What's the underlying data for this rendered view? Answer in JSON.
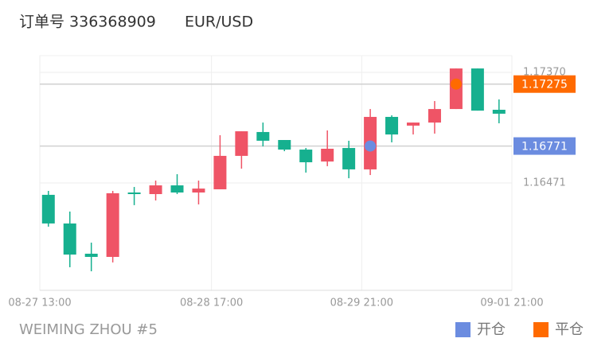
{
  "header": {
    "order": "订单号 336368909",
    "symbol": "EUR/USD"
  },
  "footer": {
    "author": "WEIMING ZHOU #5"
  },
  "chart_data": {
    "type": "candlestick",
    "x": [
      0.4,
      1.4,
      2.4,
      3.4,
      4.4,
      5.4,
      6.4,
      7.4,
      8.4,
      9.4,
      10.4,
      11.4,
      12.4,
      13.4,
      14.4,
      15.4,
      16.4,
      17.4,
      18.4,
      19.4,
      20.4,
      21.4
    ],
    "open": [
      1.16374,
      1.16141,
      1.15895,
      1.15869,
      1.16393,
      1.1638,
      1.16451,
      1.16393,
      1.16419,
      1.16691,
      1.16885,
      1.1682,
      1.16742,
      1.16645,
      1.16755,
      1.16581,
      1.17008,
      1.16937,
      1.16962,
      1.17072,
      1.17402,
      1.17066
    ],
    "high": [
      1.16406,
      1.16238,
      1.15985,
      1.16406,
      1.16438,
      1.1649,
      1.16542,
      1.1649,
      1.16859,
      1.16891,
      1.16962,
      1.1682,
      1.16755,
      1.16898,
      1.16814,
      1.17072,
      1.17021,
      1.16962,
      1.17137,
      1.17402,
      1.17402,
      1.1715
    ],
    "low": [
      1.16115,
      1.15785,
      1.15752,
      1.15824,
      1.1629,
      1.16328,
      1.1638,
      1.16296,
      1.16419,
      1.16587,
      1.16768,
      1.16729,
      1.16555,
      1.16607,
      1.16509,
      1.16535,
      1.16801,
      1.16865,
      1.16872,
      1.17072,
      1.17059,
      1.16956
    ],
    "close": [
      1.16141,
      1.15888,
      1.15869,
      1.16387,
      1.1638,
      1.16451,
      1.16393,
      1.16425,
      1.16691,
      1.16891,
      1.16814,
      1.16742,
      1.16639,
      1.16749,
      1.16581,
      1.17008,
      1.16865,
      1.16962,
      1.17072,
      1.17402,
      1.17059,
      1.17034
    ],
    "up_color": "#ef5466",
    "down_color": "#16b08f",
    "xlim": [
      0,
      22
    ],
    "xticks": [
      {
        "value": 0,
        "label": "08-27 13:00"
      },
      {
        "value": 8,
        "label": "08-28 17:00"
      },
      {
        "value": 15,
        "label": "08-29 21:00"
      },
      {
        "value": 22,
        "label": "09-01 21:00"
      }
    ],
    "ylim": [
      1.15597,
      1.17506
    ],
    "yticks": [
      {
        "value": 1.1737,
        "label": "1.17370"
      },
      1.16471
    ],
    "grid": true,
    "legend": "bottom-right",
    "markers": [
      {
        "name": "开仓",
        "color": "#6b8ce0",
        "x": 15.4,
        "value": 1.16771
      },
      {
        "name": "平仓",
        "color": "#ff6a00",
        "x": 19.4,
        "value": 1.17275
      }
    ]
  }
}
